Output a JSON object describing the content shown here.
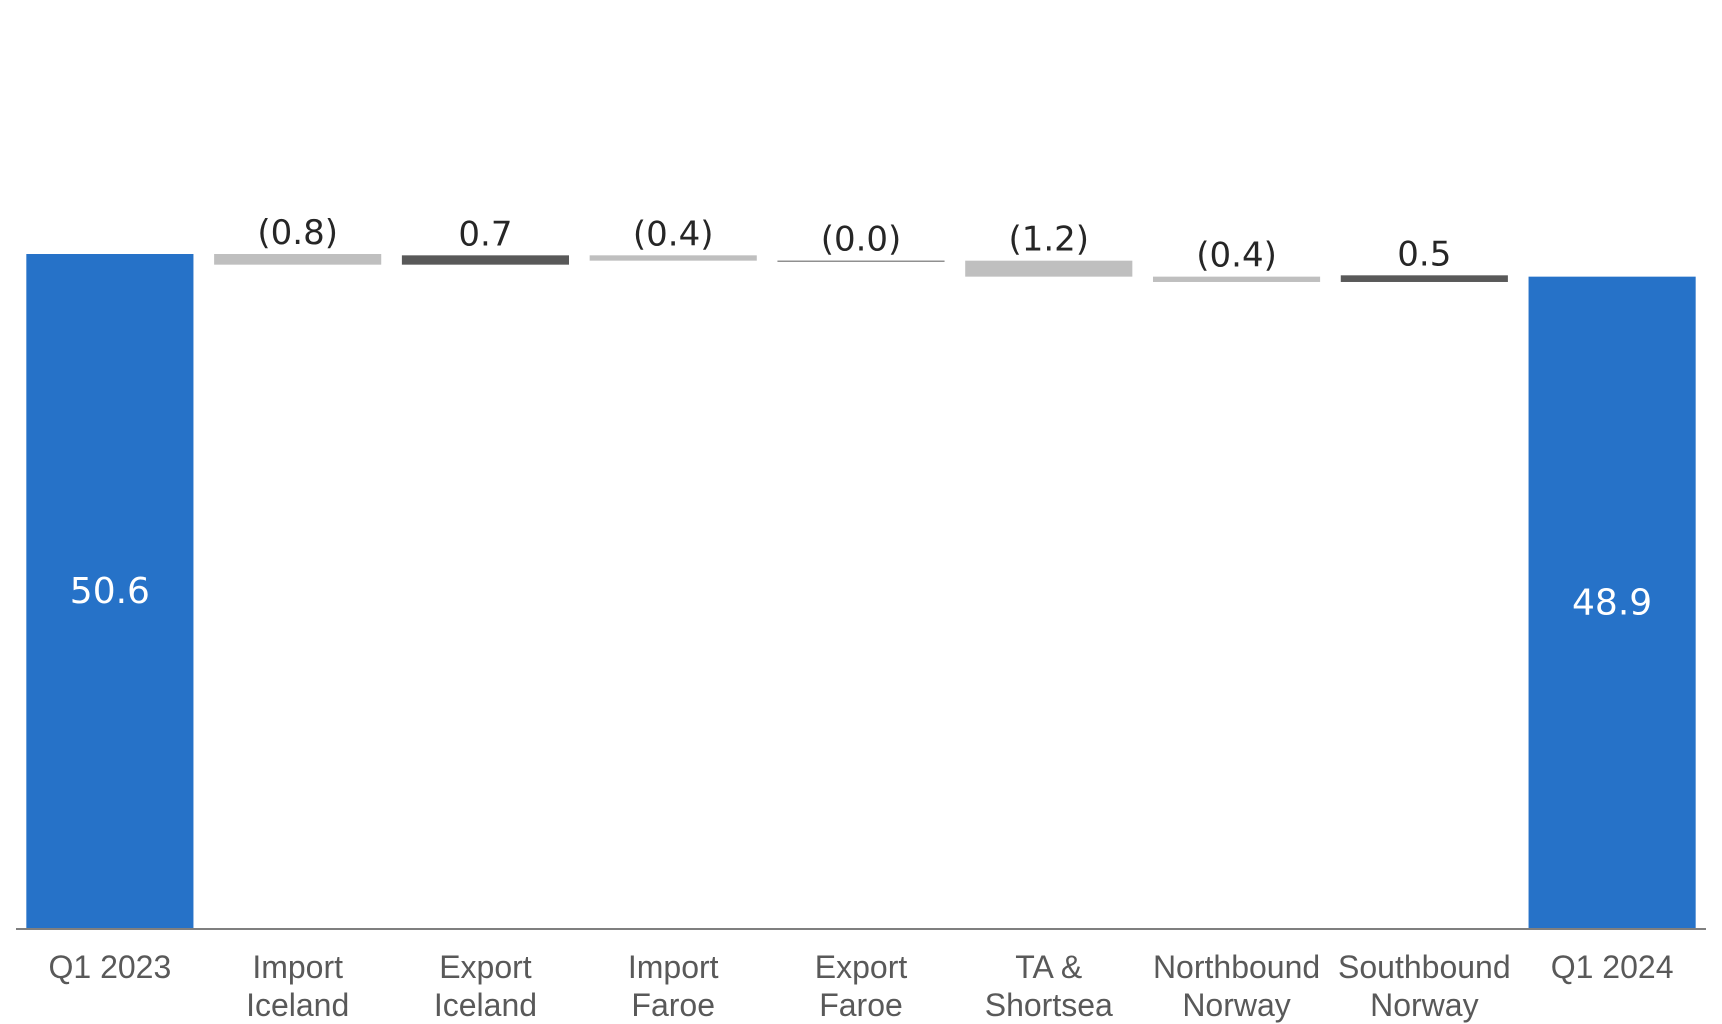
{
  "chart_data": {
    "type": "bar",
    "subtype": "waterfall",
    "title": "",
    "xlabel": "",
    "ylabel": "",
    "ylim": [
      0,
      62
    ],
    "grid": false,
    "categories": [
      [
        "Q1 2023"
      ],
      [
        "Import",
        "Iceland"
      ],
      [
        "Export",
        "Iceland"
      ],
      [
        "Import",
        "Faroe"
      ],
      [
        "Export",
        "Faroe"
      ],
      [
        "TA &",
        "Shortsea"
      ],
      [
        "Northbound",
        "Norway"
      ],
      [
        "Southbound",
        "Norway"
      ],
      [
        "Q1 2024"
      ]
    ],
    "values": [
      50.6,
      -0.8,
      0.7,
      -0.4,
      0.0,
      -1.2,
      -0.4,
      0.5,
      48.9
    ],
    "kinds": [
      "total",
      "delta",
      "delta",
      "delta",
      "delta",
      "delta",
      "delta",
      "delta",
      "total"
    ],
    "data_labels": [
      "50.6",
      "(0.8)",
      "0.7",
      "(0.4)",
      "(0.0)",
      "(1.2)",
      "(0.4)",
      "0.5",
      "48.9"
    ],
    "colors": {
      "total": "#2672c8",
      "increase": "#595959",
      "decrease": "#bfbfbf",
      "axis": "#7f7f7f"
    }
  }
}
